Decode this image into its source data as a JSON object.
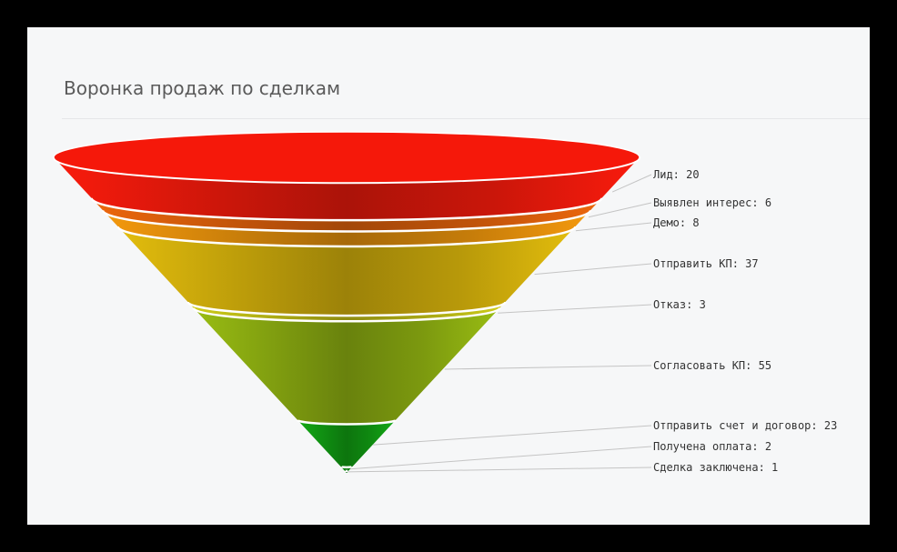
{
  "header": {
    "title": "Воронка продаж по сделкам"
  },
  "chart_data": {
    "type": "funnel",
    "title": "Воронка продаж по сделкам",
    "categories": [
      "Лид",
      "Выявлен интерес",
      "Демо",
      "Отправить КП",
      "Отказ",
      "Согласовать КП",
      "Отправить счет и договор",
      "Получена оплата",
      "Сделка заключена"
    ],
    "values": [
      20,
      6,
      8,
      37,
      3,
      55,
      23,
      2,
      1
    ],
    "labels": [
      "Лид: 20",
      "Выявлен интерес: 6",
      "Демо: 8",
      "Отправить КП: 37",
      "Отказ: 3",
      "Согласовать КП: 55",
      "Отправить счет и договор: 23",
      "Получена оплата: 2",
      "Сделка заключена: 1"
    ],
    "colors": [
      "#ee1a0c",
      "#e2620c",
      "#e8920c",
      "#d8b40c",
      "#c6c418",
      "#92b412",
      "#12a214",
      "#0e9a12",
      "#0a8a10"
    ],
    "legend": "none"
  }
}
